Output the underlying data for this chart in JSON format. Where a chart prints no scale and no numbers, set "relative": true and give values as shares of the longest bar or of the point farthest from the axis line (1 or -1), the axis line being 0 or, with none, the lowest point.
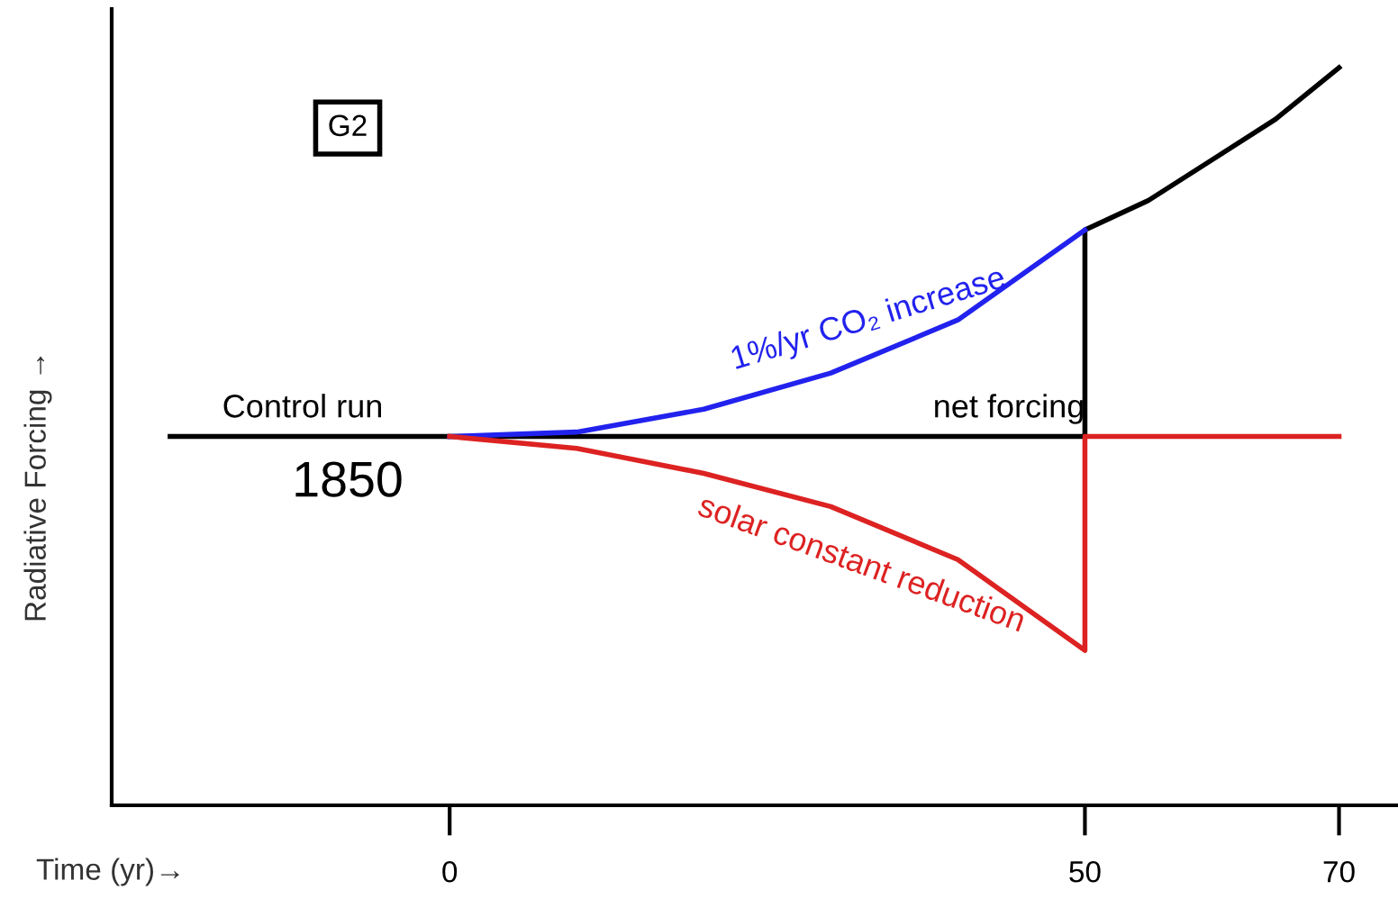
{
  "chart_data": {
    "type": "line",
    "relative": true,
    "xlabel": "Time (yr)→",
    "ylabel": "Radiative Forcing →",
    "xlim": [
      -26.6,
      74.5
    ],
    "xticks": [
      0,
      50,
      70
    ],
    "grid": false,
    "legend": false,
    "marker": "none",
    "line_style": "solid",
    "series": [
      {
        "color": "#000000",
        "x": [
          -22,
          0,
          50,
          50,
          55,
          60,
          65,
          70
        ],
        "values": [
          0.5,
          0.5,
          0.5,
          0.78,
          0.82,
          0.875,
          0.93,
          1
        ]
      },
      {
        "color": "#2222ee",
        "x": [
          0,
          10,
          20,
          30,
          40,
          50
        ],
        "values": [
          0.5,
          0.506,
          0.537,
          0.586,
          0.658,
          0.78
        ]
      },
      {
        "color": "#dd2222",
        "x": [
          0,
          10,
          20,
          30,
          40,
          50,
          50,
          70
        ],
        "values": [
          0.5,
          0.484,
          0.45,
          0.405,
          0.333,
          0.21,
          0.5,
          0.5
        ]
      }
    ],
    "annotations": [
      "G2",
      "Control run",
      "1850",
      "net forcing",
      "1%/yr CO₂ increase",
      "solar constant reduction"
    ]
  }
}
